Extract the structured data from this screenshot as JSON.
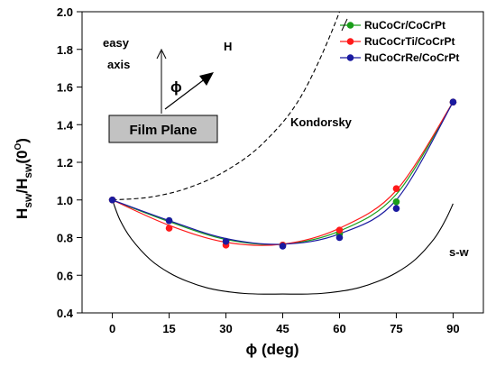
{
  "chart_data": {
    "type": "scatter",
    "title": "",
    "xlabel": "ϕ (deg)",
    "ylabel_main": "H",
    "ylabel_sub1": "sw",
    "ylabel_mid": "/H",
    "ylabel_sub2": "sw",
    "ylabel_arg": "(0",
    "ylabel_sup": "O",
    "ylabel_end": ")",
    "xlim": [
      -8,
      98
    ],
    "ylim": [
      0.4,
      2.0
    ],
    "xticks": [
      0,
      15,
      30,
      45,
      60,
      75,
      90
    ],
    "yticks": [
      "0.4",
      "0.6",
      "0.8",
      "1.0",
      "1.2",
      "1.4",
      "1.6",
      "1.8",
      "2.0"
    ],
    "grid": false,
    "legend_position": "top-right",
    "series": [
      {
        "name": "RuCoCr/CoCrPt",
        "color": "#1a9e1a",
        "x": [
          0,
          15,
          30,
          45,
          60,
          75,
          90
        ],
        "y": [
          1.0,
          0.89,
          0.78,
          0.76,
          0.82,
          0.99,
          1.52
        ],
        "fit": [
          1.0,
          0.885,
          0.79,
          0.765,
          0.835,
          1.03,
          1.52
        ]
      },
      {
        "name": "RuCoCrTi/CoCrPt",
        "color": "#ff1a1a",
        "x": [
          0,
          15,
          30,
          45,
          60,
          75,
          90
        ],
        "y": [
          1.0,
          0.85,
          0.76,
          0.76,
          0.84,
          1.06,
          1.52
        ],
        "fit": [
          1.0,
          0.865,
          0.775,
          0.765,
          0.85,
          1.05,
          1.52
        ]
      },
      {
        "name": "RuCoCrRe/CoCrPt",
        "color": "#1a1aa0",
        "x": [
          0,
          15,
          30,
          45,
          60,
          75,
          90
        ],
        "y": [
          1.0,
          0.89,
          0.78,
          0.755,
          0.8,
          0.955,
          1.52
        ],
        "fit": [
          1.0,
          0.89,
          0.795,
          0.765,
          0.82,
          1.0,
          1.52
        ]
      }
    ],
    "reference_curves": [
      {
        "name": "Kondorsky",
        "style": "dashed",
        "x": [
          0,
          10,
          20,
          30,
          40,
          50,
          60,
          65,
          70
        ],
        "y": [
          1.0,
          1.015,
          1.064,
          1.155,
          1.305,
          1.556,
          2.0,
          2.366,
          2.924
        ]
      },
      {
        "name": "s-w",
        "style": "solid",
        "x": [
          0,
          2,
          5,
          10,
          15,
          20,
          25,
          30,
          35,
          40,
          45,
          50,
          55,
          60,
          65,
          70,
          75,
          80,
          85,
          88,
          90
        ],
        "y": [
          1.0,
          0.894,
          0.794,
          0.683,
          0.613,
          0.566,
          0.533,
          0.514,
          0.503,
          0.4995,
          0.5,
          0.4995,
          0.503,
          0.514,
          0.533,
          0.566,
          0.613,
          0.683,
          0.794,
          0.894,
          0.98
        ]
      }
    ],
    "annotations": {
      "kondorsky_label": "Kondorsky",
      "sw_label": "s-w",
      "easy_axis_line1": "easy",
      "easy_axis_line2": "axis",
      "field_label": "H",
      "angle_symbol": "ϕ",
      "film_plane_label": "Film Plane"
    }
  }
}
